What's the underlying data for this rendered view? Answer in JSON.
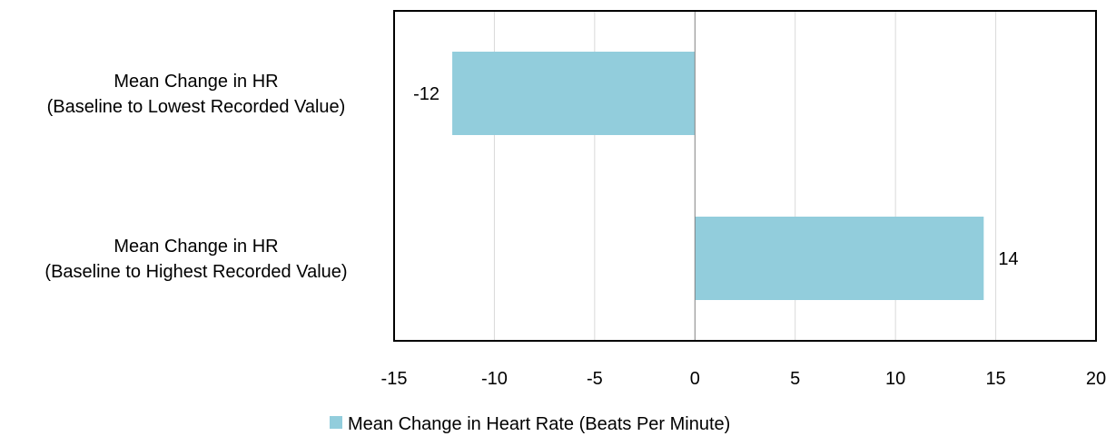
{
  "chart_data": {
    "type": "bar",
    "orientation": "horizontal",
    "categories": [
      [
        "Mean Change in HR",
        "(Baseline to Lowest Recorded Value)"
      ],
      [
        "Mean Change in HR",
        "(Baseline to Highest Recorded Value)"
      ]
    ],
    "series": [
      {
        "name": "Mean Change in Heart Rate (Beats Per Minute)",
        "values": [
          -12.1,
          14.4
        ],
        "data_labels": [
          "-12",
          "14"
        ],
        "color": "#92CDDC"
      }
    ],
    "xlim": [
      -15,
      20
    ],
    "xticks": [
      -15,
      -10,
      -5,
      0,
      5,
      10,
      15,
      20
    ],
    "grid": true,
    "legend": "bottom-center",
    "colors": {
      "bar": "#92CDDC",
      "grid": "#D9D9D9",
      "axis": "#000000",
      "zero_line": "#808080"
    }
  }
}
